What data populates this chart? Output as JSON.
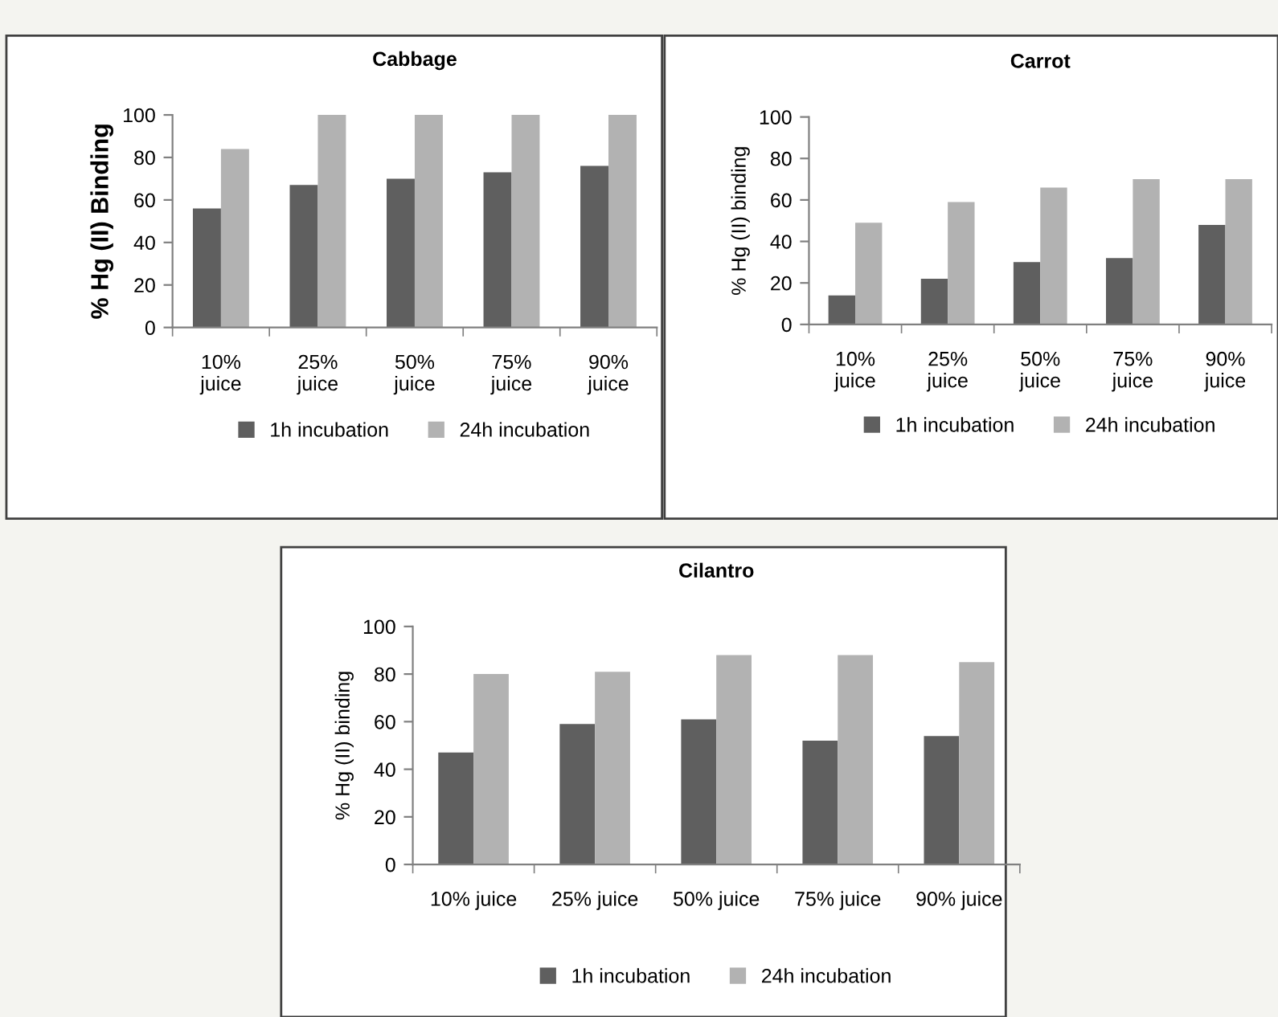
{
  "chart_data": [
    {
      "type": "bar",
      "title": "Cabbage",
      "ylabel": "% Hg (II) Binding",
      "categories": [
        "10%\njuice",
        "25%\njuice",
        "50%\njuice",
        "75%\njuice",
        "90%\njuice"
      ],
      "series": [
        {
          "name": "1h incubation",
          "color": "#5f5f5f",
          "values": [
            56,
            67,
            70,
            73,
            76
          ]
        },
        {
          "name": "24h incubation",
          "color": "#b2b2b2",
          "values": [
            84,
            100,
            100,
            100,
            100
          ]
        }
      ],
      "ylim": [
        0,
        100
      ],
      "yticks": [
        0,
        20,
        40,
        60,
        80,
        100
      ],
      "grid": false,
      "legend": "bottom"
    },
    {
      "type": "bar",
      "title": "Carrot",
      "ylabel": "% Hg (II) binding",
      "categories": [
        "10%\njuice",
        "25%\njuice",
        "50%\njuice",
        "75%\njuice",
        "90%\njuice"
      ],
      "series": [
        {
          "name": "1h incubation",
          "color": "#5f5f5f",
          "values": [
            14,
            22,
            30,
            32,
            48
          ]
        },
        {
          "name": "24h incubation",
          "color": "#b2b2b2",
          "values": [
            49,
            59,
            66,
            70,
            70
          ]
        }
      ],
      "ylim": [
        0,
        100
      ],
      "yticks": [
        0,
        20,
        40,
        60,
        80,
        100
      ],
      "grid": false,
      "legend": "bottom"
    },
    {
      "type": "bar",
      "title": "Cilantro",
      "ylabel": "% Hg (II) binding",
      "categories": [
        "10% juice",
        "25% juice",
        "50% juice",
        "75% juice",
        "90% juice"
      ],
      "series": [
        {
          "name": "1h incubation",
          "color": "#5f5f5f",
          "values": [
            47,
            59,
            61,
            52,
            54
          ]
        },
        {
          "name": "24h incubation",
          "color": "#b2b2b2",
          "values": [
            80,
            81,
            88,
            88,
            85
          ]
        }
      ],
      "ylim": [
        0,
        100
      ],
      "yticks": [
        0,
        20,
        40,
        60,
        80,
        100
      ],
      "grid": false,
      "legend": "bottom"
    }
  ]
}
